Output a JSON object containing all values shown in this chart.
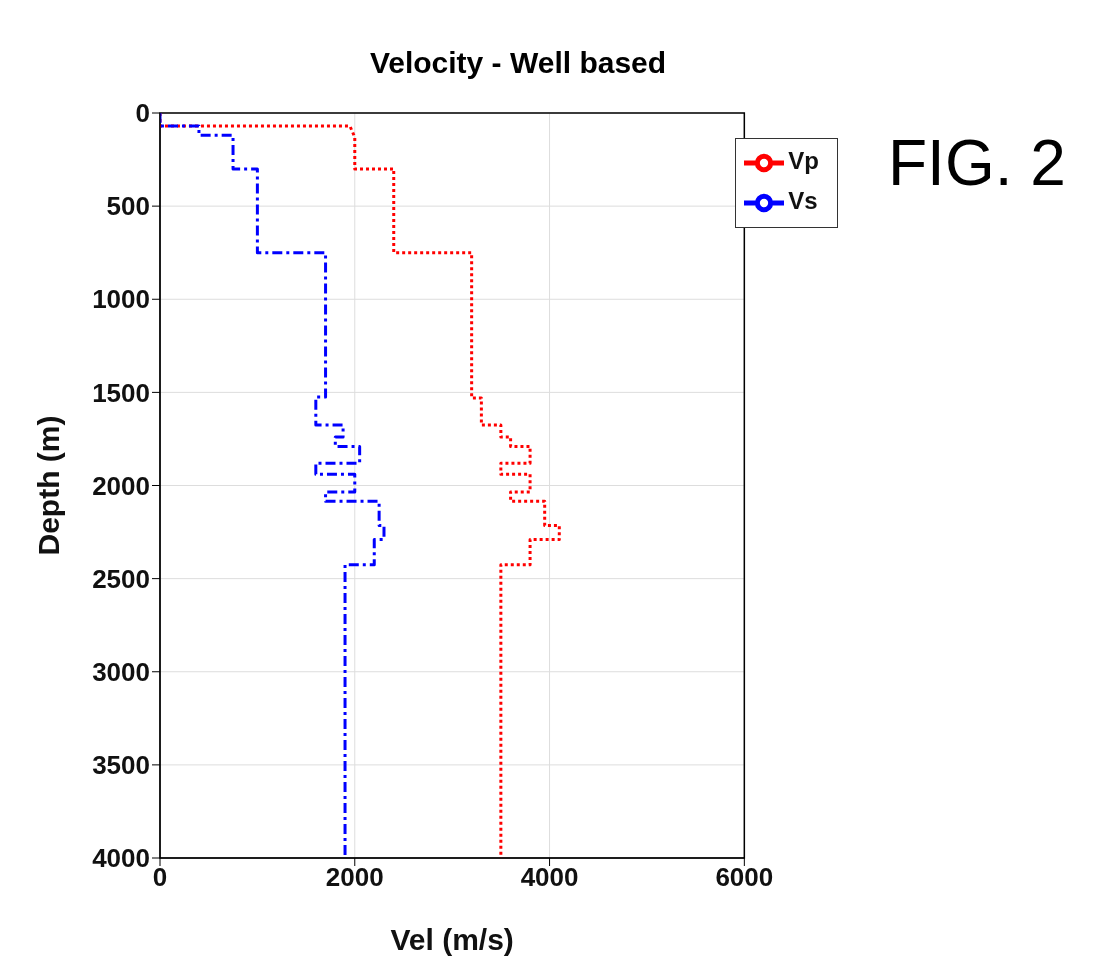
{
  "chart_data": {
    "type": "line",
    "title": "Velocity - Well based",
    "xlabel": "Vel (m/s)",
    "ylabel": "Depth (m)",
    "xlim": [
      0,
      6000
    ],
    "xticks": [
      0,
      2000,
      4000,
      6000
    ],
    "ylim": [
      4000,
      0
    ],
    "yticks": [
      0,
      500,
      1000,
      1500,
      2000,
      2500,
      3000,
      3500,
      4000
    ],
    "grid": true,
    "legend": "top right",
    "annotations": [
      "FIG. 2"
    ],
    "series": [
      {
        "name": "Vp",
        "color": "#ff0000",
        "line_style": "dotted",
        "x": [
          0,
          0,
          1950,
          2000,
          2000,
          2400,
          2400,
          3200,
          3200,
          3300,
          3300,
          3500,
          3500,
          3600,
          3600,
          3800,
          3800,
          3500,
          3500,
          3800,
          3800,
          3600,
          3600,
          3950,
          3950,
          4100,
          4100,
          3800,
          3800,
          3500,
          3500
        ],
        "values": [
          0,
          70,
          70,
          130,
          300,
          300,
          750,
          750,
          1530,
          1530,
          1675,
          1675,
          1740,
          1740,
          1790,
          1790,
          1880,
          1880,
          1940,
          1940,
          2035,
          2035,
          2085,
          2085,
          2215,
          2215,
          2290,
          2290,
          2425,
          2425,
          4000
        ]
      },
      {
        "name": "Vs",
        "color": "#0000ff",
        "line_style": "dashed",
        "x": [
          0,
          0,
          400,
          400,
          750,
          750,
          1000,
          1000,
          1700,
          1700,
          1600,
          1600,
          1880,
          1880,
          1800,
          1800,
          2050,
          2050,
          1600,
          1600,
          2000,
          2000,
          1700,
          1700,
          2250,
          2250,
          2300,
          2300,
          2200,
          2200,
          1900,
          1900
        ],
        "values": [
          0,
          70,
          70,
          120,
          120,
          300,
          300,
          750,
          750,
          1525,
          1525,
          1675,
          1675,
          1740,
          1740,
          1790,
          1790,
          1880,
          1880,
          1940,
          1940,
          2035,
          2035,
          2085,
          2085,
          2215,
          2215,
          2290,
          2290,
          2425,
          2425,
          4000
        ]
      }
    ]
  }
}
